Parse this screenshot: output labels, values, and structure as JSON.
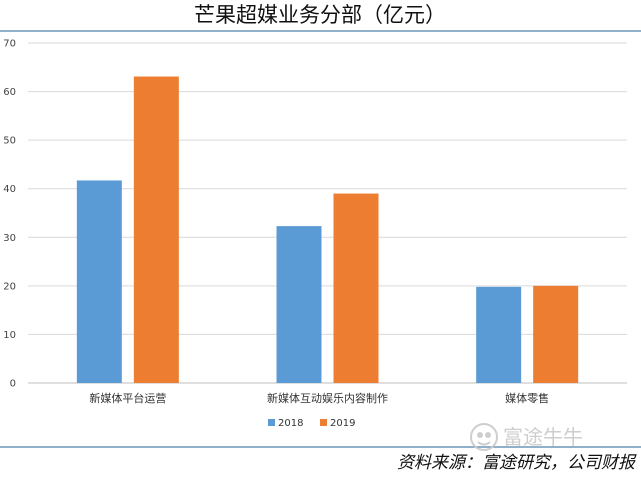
{
  "chart_data": {
    "type": "bar",
    "title": "芒果超媒业务分部（亿元）",
    "categories": [
      "新媒体平台运营",
      "新媒体互动娱乐内容制作",
      "媒体零售"
    ],
    "series": [
      {
        "name": "2018",
        "values": [
          41.7,
          32.3,
          19.8
        ]
      },
      {
        "name": "2019",
        "values": [
          63.1,
          39.0,
          20.0
        ]
      }
    ],
    "ylim": [
      0,
      70
    ],
    "yticks": [
      0,
      10,
      20,
      30,
      40,
      50,
      60,
      70
    ],
    "xlabel": "",
    "ylabel": "",
    "grid": true,
    "legend_position": "bottom-center"
  },
  "colors": {
    "series": [
      "#5b9bd5",
      "#ed7d31"
    ],
    "grid": "#d9d9d9",
    "rule": "#4d7fa8",
    "watermark": "#c9c9c9"
  },
  "footer": {
    "source": "资料来源：富途研究，公司财报",
    "watermark": "富途牛牛",
    "watermark_icon": "futu-logo-icon"
  }
}
